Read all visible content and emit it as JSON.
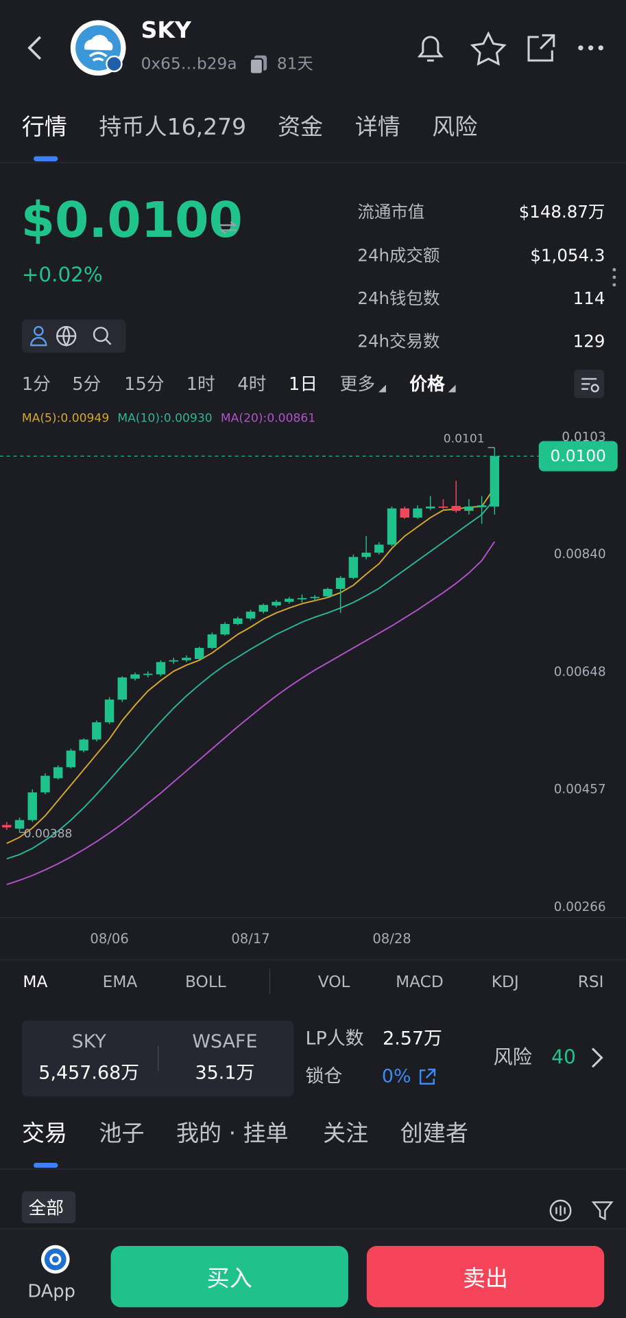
{
  "header": {
    "title": "SKY",
    "address": "0x65…b29a",
    "age": "81天"
  },
  "tabs": [
    "行情",
    "持币人16,279",
    "资金",
    "详情",
    "风险"
  ],
  "price": {
    "value": "$0.0100",
    "change": "+0.02%"
  },
  "stats": [
    {
      "label": "流通市值",
      "value": "$148.87万"
    },
    {
      "label": "24h成交额",
      "value": "$1,054.3"
    },
    {
      "label": "24h钱包数",
      "value": "114"
    },
    {
      "label": "24h交易数",
      "value": "129"
    }
  ],
  "timeframes": [
    "1分",
    "5分",
    "15分",
    "1时",
    "4时",
    "1日",
    "更多",
    "价格"
  ],
  "chart_data": {
    "type": "candlestick",
    "categories": [
      null,
      null,
      null,
      null,
      null,
      null,
      null,
      null,
      "08/06",
      null,
      null,
      null,
      null,
      null,
      null,
      null,
      null,
      null,
      null,
      "08/17",
      null,
      null,
      null,
      null,
      null,
      null,
      null,
      null,
      null,
      null,
      "08/28",
      null,
      null,
      null,
      null,
      null,
      null,
      null,
      null
    ],
    "open": [
      0.004,
      0.00394,
      0.00408,
      0.00453,
      0.00476,
      0.00494,
      0.00521,
      0.00539,
      0.00567,
      0.00604,
      0.00638,
      0.00645,
      0.00645,
      0.00666,
      0.00668,
      0.0067,
      0.00688,
      0.0071,
      0.00727,
      0.00736,
      0.00747,
      0.00757,
      0.00763,
      0.00767,
      0.00769,
      0.00772,
      0.00784,
      0.00802,
      0.00836,
      0.00843,
      0.00856,
      0.00915,
      0.009,
      0.00915,
      0.00918,
      0.00919,
      0.00911,
      0.00917,
      0.00918
    ],
    "high": [
      0.00405,
      0.00412,
      0.00458,
      0.00484,
      0.00497,
      0.00524,
      0.00541,
      0.0057,
      0.00608,
      0.00642,
      0.00648,
      0.0065,
      0.00668,
      0.00672,
      0.00676,
      0.0069,
      0.00713,
      0.0073,
      0.00739,
      0.0075,
      0.0076,
      0.00766,
      0.00771,
      0.00775,
      0.00774,
      0.00786,
      0.00805,
      0.0084,
      0.0087,
      0.0086,
      0.00918,
      0.00918,
      0.0092,
      0.00935,
      0.0093,
      0.0096,
      0.0093,
      0.00935,
      0.01014
    ],
    "low": [
      0.00392,
      0.00388,
      0.00405,
      0.0045,
      0.00474,
      0.00492,
      0.00518,
      0.00536,
      0.00564,
      0.006,
      0.00635,
      0.0064,
      0.00642,
      0.00662,
      0.00665,
      0.00668,
      0.00686,
      0.00708,
      0.00725,
      0.00733,
      0.00744,
      0.00754,
      0.0076,
      0.00762,
      0.00765,
      0.0077,
      0.00745,
      0.008,
      0.00832,
      0.0084,
      0.00853,
      0.00898,
      0.00898,
      0.00912,
      0.00914,
      0.00908,
      0.00905,
      0.0089,
      0.00905
    ],
    "close": [
      0.00396,
      0.00408,
      0.00453,
      0.0048,
      0.00494,
      0.00521,
      0.00539,
      0.00567,
      0.00604,
      0.0064,
      0.00645,
      0.00646,
      0.00665,
      0.00668,
      0.00672,
      0.00688,
      0.0071,
      0.00727,
      0.00736,
      0.00747,
      0.00758,
      0.00763,
      0.00768,
      0.00769,
      0.00771,
      0.00784,
      0.00802,
      0.00836,
      0.00843,
      0.00856,
      0.00915,
      0.009,
      0.00915,
      0.00918,
      0.00917,
      0.00911,
      0.00918,
      0.0092,
      0.01
    ],
    "up_color": "#1fc28b",
    "down_color": "#f0485a",
    "series": [
      {
        "name": "MA(5):0.00949",
        "color": "#d4a72c",
        "values": [
          0.0037,
          0.0038,
          0.00395,
          0.00415,
          0.0044,
          0.00465,
          0.0049,
          0.00515,
          0.0054,
          0.0057,
          0.00595,
          0.00618,
          0.00635,
          0.0065,
          0.0066,
          0.00668,
          0.0068,
          0.00695,
          0.0071,
          0.00722,
          0.00735,
          0.00745,
          0.00753,
          0.0076,
          0.00765,
          0.0077,
          0.00778,
          0.0079,
          0.00808,
          0.00825,
          0.0085,
          0.0087,
          0.00885,
          0.009,
          0.00912,
          0.00914,
          0.00917,
          0.00918,
          0.00949
        ]
      },
      {
        "name": "MA(10):0.00930",
        "color": "#2bb596",
        "values": [
          0.00345,
          0.00352,
          0.00362,
          0.00375,
          0.0039,
          0.00408,
          0.00428,
          0.0045,
          0.00473,
          0.00497,
          0.0052,
          0.00545,
          0.00568,
          0.0059,
          0.0061,
          0.00628,
          0.00645,
          0.0066,
          0.00673,
          0.00686,
          0.00698,
          0.0071,
          0.0072,
          0.0073,
          0.00738,
          0.00745,
          0.00753,
          0.00762,
          0.00773,
          0.00785,
          0.008,
          0.00815,
          0.0083,
          0.00845,
          0.0086,
          0.00875,
          0.0089,
          0.00905,
          0.0093
        ]
      },
      {
        "name": "MA(20):0.00861",
        "color": "#b052c8",
        "values": [
          0.00303,
          0.0031,
          0.00318,
          0.00327,
          0.00337,
          0.00348,
          0.0036,
          0.00373,
          0.00387,
          0.00402,
          0.00418,
          0.00435,
          0.00452,
          0.0047,
          0.00488,
          0.00506,
          0.00524,
          0.00542,
          0.0056,
          0.00577,
          0.00594,
          0.0061,
          0.00625,
          0.00639,
          0.00652,
          0.00664,
          0.00676,
          0.00688,
          0.007,
          0.00712,
          0.00724,
          0.00737,
          0.0075,
          0.00764,
          0.00778,
          0.00793,
          0.0081,
          0.0083,
          0.00861
        ]
      }
    ],
    "ylim": [
      0.00266,
      0.0103
    ],
    "yticks": [
      0.0103,
      {
        "value": 0.0084,
        "label": "0.00840"
      },
      0.00648,
      0.00457,
      0.00266
    ],
    "grid": false,
    "last_price": 0.01,
    "last_price_label": "0.0100",
    "high_label": "0.0101",
    "low_label": "0.00388"
  },
  "indicators": [
    "MA",
    "EMA",
    "BOLL",
    "VOL",
    "MACD",
    "KDJ",
    "RSI"
  ],
  "pool": {
    "tokens": [
      {
        "name": "SKY",
        "amount": "5,457.68万"
      },
      {
        "name": "WSAFE",
        "amount": "35.1万"
      }
    ],
    "lp_label": "LP人数",
    "lp_value": "2.57万",
    "lock_label": "锁仓",
    "lock_value": "0%",
    "risk_label": "风险",
    "risk_value": "40"
  },
  "trade_tabs": [
    "交易",
    "池子",
    "我的 · 挂单",
    "关注",
    "创建者"
  ],
  "filter": "全部",
  "footer": {
    "dapp": "DApp",
    "buy": "买入",
    "sell": "卖出"
  }
}
